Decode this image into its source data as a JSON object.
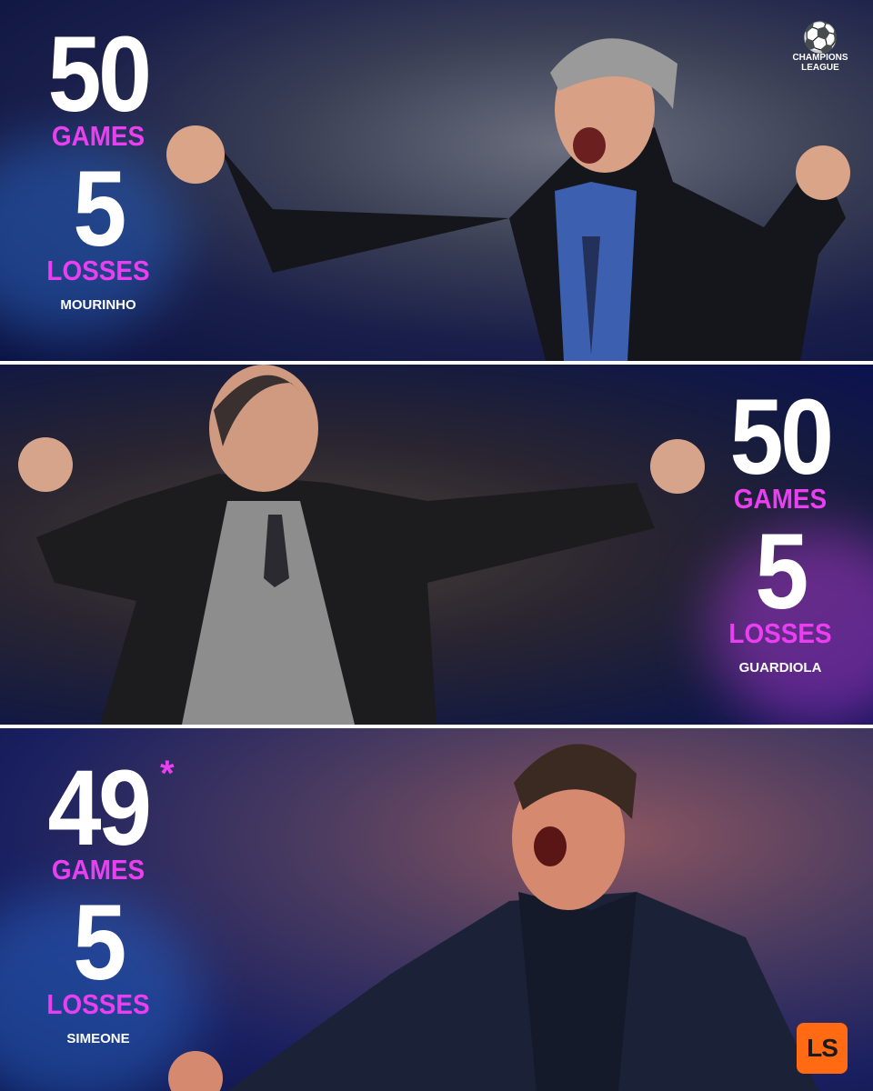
{
  "brand": {
    "competition_logo_text": "CHAMPIONS LEAGUE",
    "publisher_logo_text": "LS",
    "publisher_color": "#ff6a13",
    "accent_color": "#ea3ff0"
  },
  "coaches": [
    {
      "games": "50",
      "games_label": "GAMES",
      "losses": "5",
      "losses_label": "LOSSES",
      "name": "MOURINHO"
    },
    {
      "games": "50",
      "games_label": "GAMES",
      "losses": "5",
      "losses_label": "LOSSES",
      "name": "GUARDIOLA"
    },
    {
      "games": "49",
      "games_note": "*",
      "games_label": "GAMES",
      "losses": "5",
      "losses_label": "LOSSES",
      "name": "SIMEONE"
    }
  ]
}
